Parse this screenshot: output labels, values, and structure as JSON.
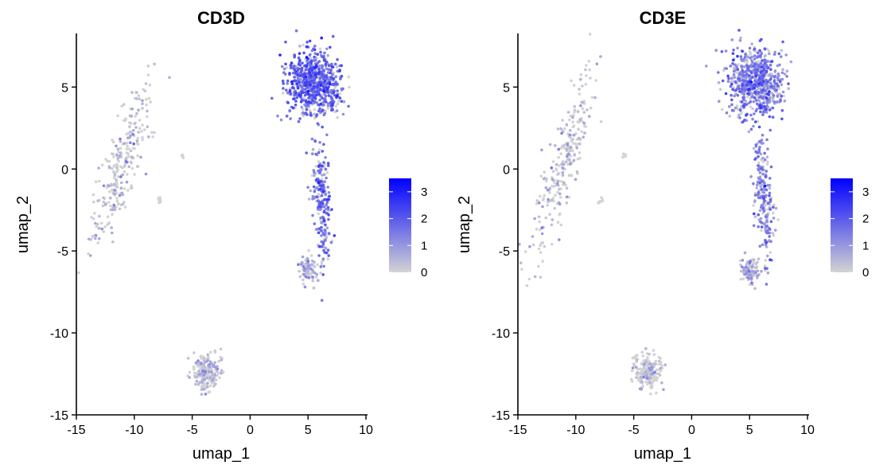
{
  "chart_data": [
    {
      "type": "scatter",
      "title": "CD3D",
      "xlabel": "umap_1",
      "ylabel": "umap_2",
      "xlim": [
        -15,
        10
      ],
      "ylim": [
        -15,
        9
      ],
      "xticks": [
        "-15",
        "-10",
        "-5",
        "0",
        "5",
        "10"
      ],
      "yticks": [
        "-15",
        "-10",
        "-5",
        "0",
        "5"
      ],
      "legend": {
        "position": "right",
        "min": 0,
        "max": 3.5,
        "low_color": "#D3D3D3",
        "high_color": "#0000FF",
        "labels": [
          "0",
          "1",
          "2",
          "3"
        ]
      },
      "clusters": [
        {
          "name": "upper-right cluster",
          "center": [
            5.5,
            5.3
          ],
          "spread": [
            2.8,
            2.4
          ],
          "n": 700,
          "expression": 1.7
        },
        {
          "name": "right middle strand",
          "center": [
            6.2,
            -2.0
          ],
          "spread": [
            0.9,
            3.2
          ],
          "n": 220,
          "expression": 1.6
        },
        {
          "name": "right lower blob",
          "center": [
            5.0,
            -6.2
          ],
          "spread": [
            0.9,
            0.9
          ],
          "n": 90,
          "expression": 0.4
        },
        {
          "name": "left elongated cluster",
          "center": [
            -11.0,
            0.5
          ],
          "spread": [
            1.6,
            3.5
          ],
          "n": 260,
          "expression": 0.15
        },
        {
          "name": "bottom cluster",
          "center": [
            -3.8,
            -12.4
          ],
          "spread": [
            1.4,
            1.2
          ],
          "n": 200,
          "expression": 0.05
        },
        {
          "name": "small isolated group",
          "center": [
            -5.8,
            0.8
          ],
          "spread": [
            0.2,
            0.15
          ],
          "n": 6,
          "expression": 0.0
        },
        {
          "name": "tiny strand",
          "center": [
            -7.8,
            -2.0
          ],
          "spread": [
            0.3,
            0.4
          ],
          "n": 8,
          "expression": 0.0
        }
      ]
    },
    {
      "type": "scatter",
      "title": "CD3E",
      "xlabel": "umap_1",
      "ylabel": "umap_2",
      "xlim": [
        -15,
        10
      ],
      "ylim": [
        -15,
        9
      ],
      "xticks": [
        "-15",
        "-10",
        "-5",
        "0",
        "5",
        "10"
      ],
      "yticks": [
        "-15",
        "-10",
        "-5",
        "0",
        "5"
      ],
      "legend": {
        "position": "right",
        "min": 0,
        "max": 3.5,
        "low_color": "#D3D3D3",
        "high_color": "#0000FF",
        "labels": [
          "0",
          "1",
          "2",
          "3"
        ]
      },
      "clusters": [
        {
          "name": "upper-right cluster",
          "center": [
            5.5,
            5.3
          ],
          "spread": [
            2.8,
            2.4
          ],
          "n": 700,
          "expression": 1.3
        },
        {
          "name": "right middle strand",
          "center": [
            6.2,
            -2.0
          ],
          "spread": [
            0.9,
            3.2
          ],
          "n": 220,
          "expression": 1.2
        },
        {
          "name": "right lower blob",
          "center": [
            5.0,
            -6.2
          ],
          "spread": [
            0.9,
            0.9
          ],
          "n": 90,
          "expression": 0.5
        },
        {
          "name": "left elongated cluster",
          "center": [
            -11.0,
            0.5
          ],
          "spread": [
            1.6,
            3.5
          ],
          "n": 260,
          "expression": 0.2
        },
        {
          "name": "bottom cluster",
          "center": [
            -3.8,
            -12.4
          ],
          "spread": [
            1.4,
            1.2
          ],
          "n": 200,
          "expression": 0.1
        },
        {
          "name": "small isolated group",
          "center": [
            -5.8,
            0.8
          ],
          "spread": [
            0.2,
            0.15
          ],
          "n": 6,
          "expression": 0.0
        },
        {
          "name": "tiny strand",
          "center": [
            -7.8,
            -2.0
          ],
          "spread": [
            0.3,
            0.4
          ],
          "n": 8,
          "expression": 0.0
        }
      ]
    }
  ]
}
